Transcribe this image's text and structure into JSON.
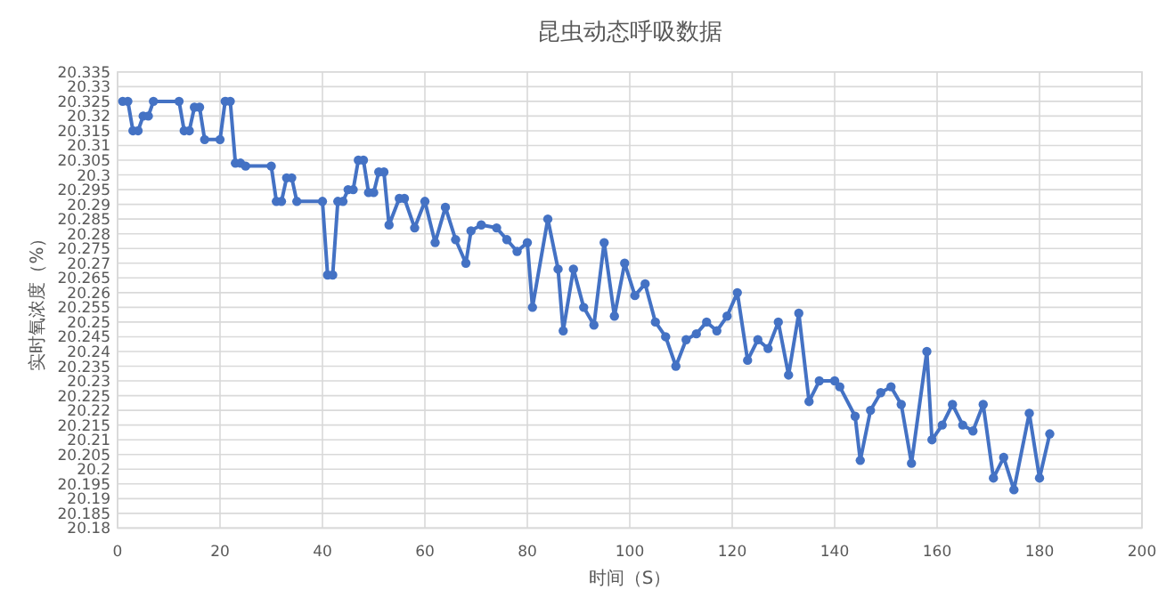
{
  "chart_data": {
    "type": "line",
    "title": "昆虫动态呼吸数据",
    "xlabel": "时间（S）",
    "ylabel": "实时氧浓度（%）",
    "x": [
      1,
      2,
      3,
      4,
      5,
      6,
      7,
      12,
      13,
      14,
      15,
      16,
      17,
      20,
      21,
      22,
      23,
      24,
      25,
      30,
      31,
      32,
      33,
      34,
      35,
      40,
      41,
      42,
      43,
      44,
      45,
      46,
      47,
      48,
      49,
      50,
      51,
      52,
      53,
      55,
      56,
      58,
      60,
      62,
      64,
      66,
      68,
      69,
      71,
      74,
      76,
      78,
      80,
      81,
      84,
      86,
      87,
      89,
      91,
      93,
      95,
      97,
      99,
      101,
      103,
      105,
      107,
      109,
      111,
      113,
      115,
      117,
      119,
      121,
      123,
      125,
      127,
      129,
      131,
      133,
      135,
      137,
      140,
      141,
      144,
      145,
      147,
      149,
      151,
      153,
      155,
      158,
      159,
      161,
      163,
      165,
      167,
      169,
      171,
      173,
      175,
      178,
      180,
      182
    ],
    "series": [
      {
        "color": "#4472c4",
        "values": [
          20.325,
          20.325,
          20.315,
          20.315,
          20.32,
          20.32,
          20.325,
          20.325,
          20.315,
          20.315,
          20.323,
          20.323,
          20.312,
          20.312,
          20.325,
          20.325,
          20.304,
          20.304,
          20.303,
          20.303,
          20.291,
          20.291,
          20.299,
          20.299,
          20.291,
          20.291,
          20.266,
          20.266,
          20.291,
          20.291,
          20.295,
          20.295,
          20.305,
          20.305,
          20.294,
          20.294,
          20.301,
          20.301,
          20.283,
          20.292,
          20.292,
          20.282,
          20.291,
          20.277,
          20.289,
          20.278,
          20.27,
          20.281,
          20.283,
          20.282,
          20.278,
          20.274,
          20.277,
          20.255,
          20.285,
          20.268,
          20.247,
          20.268,
          20.255,
          20.249,
          20.277,
          20.252,
          20.27,
          20.259,
          20.263,
          20.25,
          20.245,
          20.235,
          20.244,
          20.246,
          20.25,
          20.247,
          20.252,
          20.26,
          20.237,
          20.244,
          20.241,
          20.25,
          20.232,
          20.253,
          20.223,
          20.23,
          20.23,
          20.228,
          20.218,
          20.203,
          20.22,
          20.226,
          20.228,
          20.222,
          20.202,
          20.24,
          20.21,
          20.215,
          20.222,
          20.215,
          20.213,
          20.222,
          20.197,
          20.204,
          20.193,
          20.219,
          20.197,
          20.212
        ]
      }
    ],
    "xlim": [
      0,
      200
    ],
    "xticks": [
      0,
      20,
      40,
      60,
      80,
      100,
      120,
      140,
      160,
      180,
      200
    ],
    "ylim": [
      20.18,
      20.335
    ],
    "yticks": [
      20.18,
      20.185,
      20.19,
      20.195,
      20.2,
      20.205,
      20.21,
      20.215,
      20.22,
      20.225,
      20.23,
      20.235,
      20.24,
      20.245,
      20.25,
      20.255,
      20.26,
      20.265,
      20.27,
      20.275,
      20.28,
      20.285,
      20.29,
      20.295,
      20.3,
      20.305,
      20.31,
      20.315,
      20.32,
      20.325,
      20.33,
      20.335
    ],
    "grid": true,
    "marker": "circle",
    "line_style": "solid"
  }
}
